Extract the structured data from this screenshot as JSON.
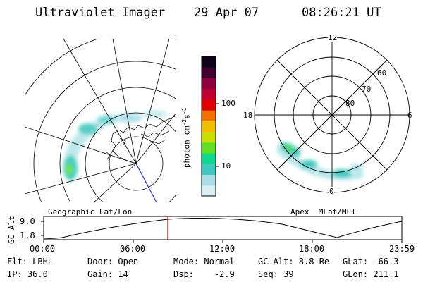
{
  "header": {
    "instrument": "Ultraviolet Imager",
    "date": "29 Apr 07",
    "time": "08:26:21 UT"
  },
  "geo_panel": {
    "label": "Geographic Lat/Lon"
  },
  "apex_panel": {
    "label": "Apex  MLat/MLT",
    "mlt_labels": [
      "12",
      "18",
      "6",
      "0"
    ],
    "lat_labels": [
      "60",
      "70",
      "80"
    ]
  },
  "colorbar": {
    "unit_label": "photon cm",
    "unit_sup1": "-2",
    "unit_mid": "s",
    "unit_sup2": "-1",
    "ticks": [
      "100",
      "10"
    ],
    "scale": "log",
    "colors": [
      "#d8eef0",
      "#a8dde8",
      "#40c8c0",
      "#10d890",
      "#60e020",
      "#c8e000",
      "#f0c000",
      "#f07000",
      "#e00000",
      "#c00030",
      "#8c0040",
      "#400030",
      "#100018"
    ]
  },
  "altitude_plot": {
    "ylabel": "GC Alt",
    "yticks": [
      "9.0",
      "1.8"
    ],
    "xticks": [
      "00:00",
      "06:00",
      "12:00",
      "18:00",
      "23:59"
    ],
    "current_marker_time": "08:26:21",
    "marker_color": "#cc0000"
  },
  "status": {
    "flt": "Flt: LBHL",
    "ip": "IP: 36.0",
    "door": "Door: Open",
    "gain": "Gain: 14",
    "mode": "Mode: Normal",
    "dsp": "Dsp:    -2.9",
    "gcalt": "GC Alt: 8.8 Re",
    "seq": "Seq: 39",
    "glat": "GLat: -66.3",
    "glon": "GLon: 211.1"
  }
}
